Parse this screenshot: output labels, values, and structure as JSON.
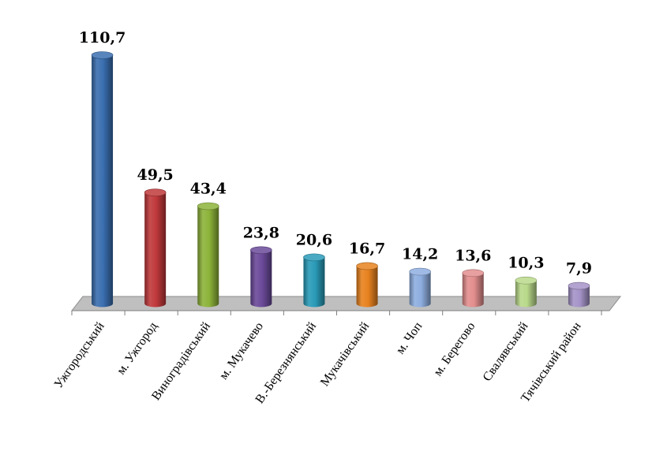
{
  "chart_data": {
    "type": "bar",
    "categories": [
      "Ужгородський",
      "м. Ужгород",
      "Виноградівський",
      "м. Мукачево",
      "В.-Березнянський",
      "Мукачівський",
      "м. Чоп",
      "м. Берегово",
      "Свалявський",
      "Тячівський район"
    ],
    "values": [
      110.7,
      49.5,
      43.4,
      23.8,
      20.6,
      16.7,
      14.2,
      13.6,
      10.3,
      7.9
    ],
    "value_labels": [
      "110,7",
      "49,5",
      "43,4",
      "23,8",
      "20,6",
      "16,7",
      "14,2",
      "13,6",
      "10,3",
      "7,9"
    ],
    "colors": [
      "#3a6fb0",
      "#c0393b",
      "#8db33a",
      "#6b4a9a",
      "#2a9bb8",
      "#e8821f",
      "#8eaee0",
      "#e38e8e",
      "#b9d98a",
      "#a593c8"
    ],
    "floor_color": "#bfbfbf",
    "grid": false,
    "legend": "none",
    "title": "",
    "xlabel": "",
    "ylabel": "",
    "ylim": [
      0,
      110.7
    ]
  }
}
